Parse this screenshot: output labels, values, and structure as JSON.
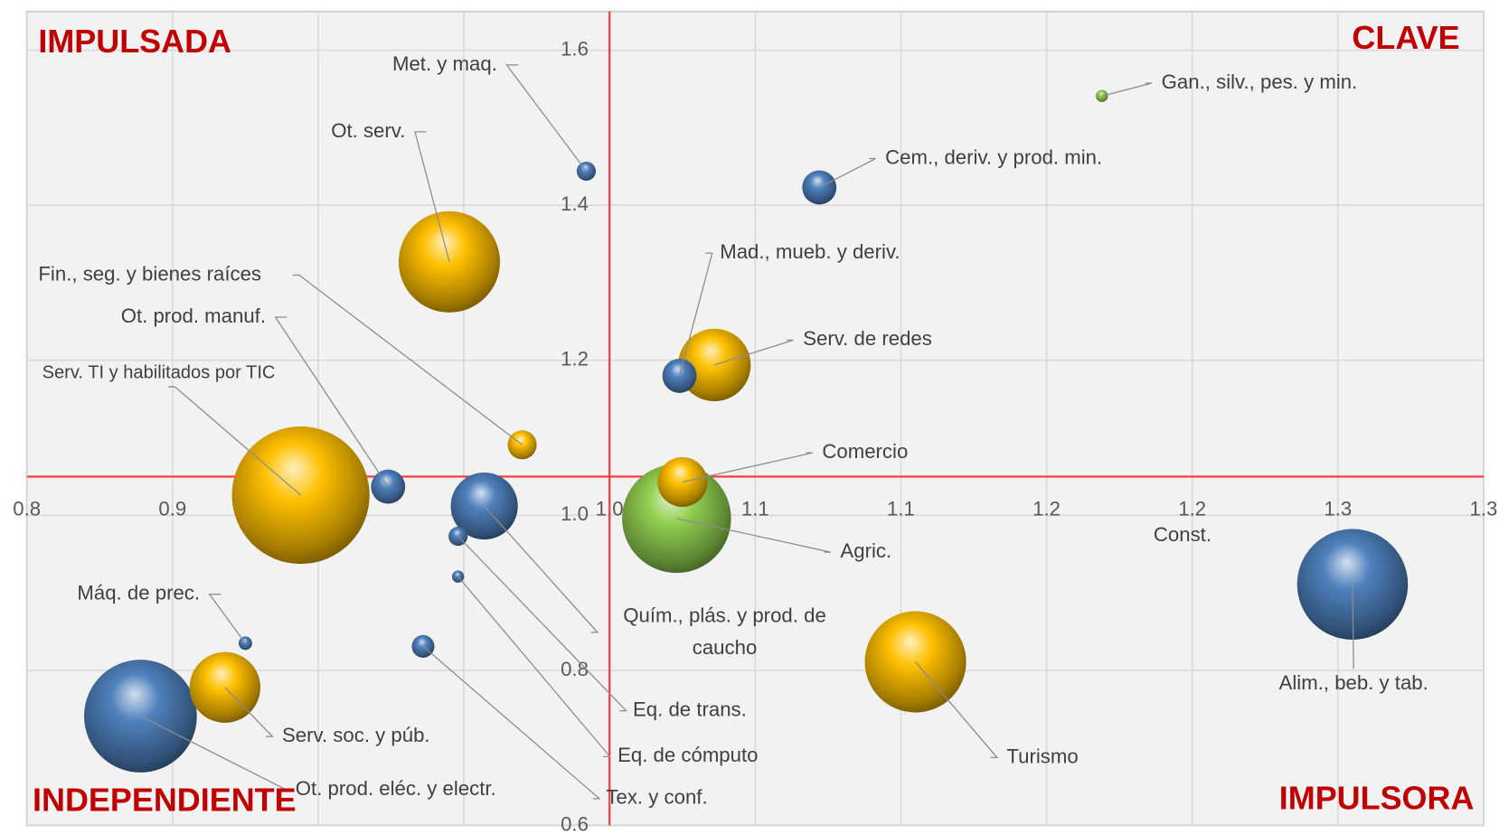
{
  "chart_data": {
    "type": "bubble",
    "quadrant_labels": {
      "top_left": "IMPULSADA",
      "top_right": "CLAVE",
      "bottom_left": "INDEPENDIENTE",
      "bottom_right": "IMPULSORA"
    },
    "xlim": [
      0.8,
      1.3
    ],
    "ylim": [
      0.6,
      1.65
    ],
    "xticks": [
      0.8,
      {
        "value": 0.85,
        "label": "0.9"
      },
      0.9,
      {
        "value": 0.95,
        "label": "1.0"
      },
      {
        "value": 1.0,
        "label": "1.0"
      },
      {
        "value": 1.05,
        "label": "1.1"
      },
      1.1,
      {
        "value": 1.15,
        "label": "1.2"
      },
      1.2,
      {
        "value": 1.25,
        "label": "1.3"
      },
      1.3
    ],
    "yticks": [
      0.6,
      0.8,
      {
        "value": 1.0,
        "label": "1.0"
      },
      1.2,
      1.4,
      1.6
    ],
    "x_axis_crosses": 1.05,
    "y_axis_crosses": 1.0,
    "grid": true,
    "points": [
      {
        "name": "Met. y maq.",
        "x": 0.992,
        "y": 1.444,
        "size": 1.0,
        "color": "#4f81bd"
      },
      {
        "name": "Ot. serv.",
        "x": 0.945,
        "y": 1.327,
        "size": 28.1,
        "color": "#ffc000"
      },
      {
        "name": "Fin., seg. y bienes raíces",
        "x": 0.97,
        "y": 1.091,
        "size": 2.3,
        "color": "#ffc000"
      },
      {
        "name": "Ot. prod. manuf.",
        "x": 0.924,
        "y": 1.037,
        "size": 3.2,
        "color": "#4f81bd"
      },
      {
        "name": "Serv. TI y habilitados por TIC",
        "x": 0.894,
        "y": 1.026,
        "size": 51.8,
        "color": "#ffc000"
      },
      {
        "name": "Quím., plás. y prod. de caucho",
        "x": 0.957,
        "y": 1.012,
        "size": 12.3,
        "color": "#4f81bd"
      },
      {
        "name": "Eq. de trans.",
        "x": 0.948,
        "y": 0.973,
        "size": 1.0,
        "color": "#4f81bd"
      },
      {
        "name": "Eq. de cómputo",
        "x": 0.948,
        "y": 0.921,
        "size": 0.4,
        "color": "#4f81bd"
      },
      {
        "name": "Tex. y conf.",
        "x": 0.936,
        "y": 0.831,
        "size": 1.4,
        "color": "#4f81bd"
      },
      {
        "name": "Máq. de prec.",
        "x": 0.875,
        "y": 0.835,
        "size": 0.5,
        "color": "#4f81bd"
      },
      {
        "name": "Serv. soc. y púb.",
        "x": 0.868,
        "y": 0.778,
        "size": 13.7,
        "color": "#ffc000"
      },
      {
        "name": "Ot. prod. eléc. y electr.",
        "x": 0.839,
        "y": 0.741,
        "size": 34.8,
        "color": "#4f81bd"
      },
      {
        "name": "Gan., silv., pes. y min.",
        "x": 1.169,
        "y": 1.541,
        "size": 0.4,
        "color": "#92d050"
      },
      {
        "name": "Cem., deriv. y prod. min.",
        "x": 1.072,
        "y": 1.423,
        "size": 3.2,
        "color": "#4f81bd"
      },
      {
        "name": "Mad., mueb. y deriv.",
        "x": 1.024,
        "y": 1.18,
        "size": 3.2,
        "color": "#4f81bd"
      },
      {
        "name": "Serv. de redes",
        "x": 1.036,
        "y": 1.194,
        "size": 14.4,
        "color": "#ffc000"
      },
      {
        "name": "Comercio",
        "x": 1.025,
        "y": 1.043,
        "size": 6.8,
        "color": "#ffc000"
      },
      {
        "name": "Agric.",
        "x": 1.023,
        "y": 0.996,
        "size": 32.5,
        "color": "#92d050"
      },
      {
        "name": "Turismo",
        "x": 1.105,
        "y": 0.811,
        "size": 28.1,
        "color": "#ffc000"
      },
      {
        "name": "Alim., beb. y tab.",
        "x": 1.255,
        "y": 0.911,
        "size": 33.6,
        "color": "#4f81bd"
      },
      {
        "name": "Const.",
        "x": 1.198,
        "y": 0.99,
        "size": 0,
        "color": "#4f81bd"
      }
    ]
  }
}
